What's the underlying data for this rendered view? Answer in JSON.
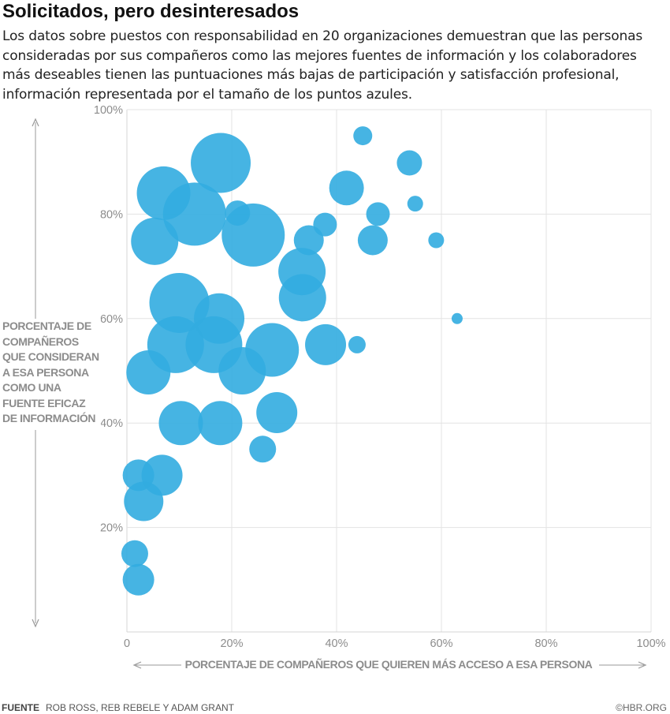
{
  "title": "Solicitados, pero desinteresados",
  "subtitle": "Los datos sobre puestos con responsabilidad en 20 organizaciones demuestran que las personas consideradas por sus compañeros como las mejores fuentes de información y los colaboradores más deseables tienen las puntuaciones más bajas de participación y satisfacción profesional, información representada por el tamaño de los puntos azules.",
  "footer": {
    "source_label": "FUENTE",
    "source_text": "ROB ROSS, REB REBELE Y ADAM GRANT",
    "credit": "©HBR.ORG"
  },
  "colors": {
    "bubble": "#32ace0",
    "grid": "#e3e3e3",
    "axis_text": "#8c8c8c",
    "arrow": "#999999"
  },
  "chart_data": {
    "type": "scatter",
    "title": "Solicitados, pero desinteresados",
    "xlabel": "PORCENTAJE DE COMPAÑEROS QUE QUIEREN MÁS ACCESO A ESA PERSONA",
    "ylabel": "PORCENTAJE DE COMPAÑEROS QUE CONSIDERAN A ESA PERSONA COMO UNA FUENTE EFICAZ DE INFORMACIÓN",
    "xlim": [
      0,
      100
    ],
    "ylim": [
      0,
      100
    ],
    "x_ticks": [
      "0",
      "20%",
      "40%",
      "60%",
      "80%",
      "100%"
    ],
    "y_ticks": [
      "20%",
      "40%",
      "60%",
      "80%",
      "100%"
    ],
    "grid": true,
    "size_note": "bubble size = participation and professional satisfaction score (relative)",
    "points": [
      {
        "x": 17.9,
        "y": 89.8,
        "size": 38
      },
      {
        "x": 7.0,
        "y": 84.0,
        "size": 34
      },
      {
        "x": 12.9,
        "y": 80.0,
        "size": 40
      },
      {
        "x": 21.1,
        "y": 80.2,
        "size": 16
      },
      {
        "x": 24.1,
        "y": 76.0,
        "size": 40
      },
      {
        "x": 5.3,
        "y": 74.8,
        "size": 30
      },
      {
        "x": 10.0,
        "y": 63.0,
        "size": 38
      },
      {
        "x": 17.6,
        "y": 60.0,
        "size": 32
      },
      {
        "x": 9.3,
        "y": 55.0,
        "size": 36
      },
      {
        "x": 16.6,
        "y": 55.0,
        "size": 36
      },
      {
        "x": 4.1,
        "y": 49.7,
        "size": 28
      },
      {
        "x": 22.0,
        "y": 50.0,
        "size": 30
      },
      {
        "x": 27.7,
        "y": 54.0,
        "size": 34
      },
      {
        "x": 37.9,
        "y": 55.0,
        "size": 26
      },
      {
        "x": 33.4,
        "y": 69.0,
        "size": 30
      },
      {
        "x": 33.5,
        "y": 64.0,
        "size": 30
      },
      {
        "x": 34.7,
        "y": 75.0,
        "size": 19
      },
      {
        "x": 37.8,
        "y": 78.0,
        "size": 15
      },
      {
        "x": 41.9,
        "y": 85.0,
        "size": 22
      },
      {
        "x": 45.0,
        "y": 95.0,
        "size": 12
      },
      {
        "x": 53.9,
        "y": 89.8,
        "size": 16
      },
      {
        "x": 47.9,
        "y": 80.0,
        "size": 15
      },
      {
        "x": 46.9,
        "y": 75.0,
        "size": 19
      },
      {
        "x": 55.0,
        "y": 82.0,
        "size": 10
      },
      {
        "x": 59.0,
        "y": 75.0,
        "size": 10
      },
      {
        "x": 63.0,
        "y": 60.0,
        "size": 7
      },
      {
        "x": 43.9,
        "y": 55.0,
        "size": 11
      },
      {
        "x": 28.6,
        "y": 42.0,
        "size": 26
      },
      {
        "x": 25.9,
        "y": 35.0,
        "size": 17
      },
      {
        "x": 17.8,
        "y": 40.0,
        "size": 28
      },
      {
        "x": 10.3,
        "y": 40.0,
        "size": 28
      },
      {
        "x": 2.2,
        "y": 30.0,
        "size": 20
      },
      {
        "x": 6.7,
        "y": 30.0,
        "size": 26
      },
      {
        "x": 3.2,
        "y": 25.0,
        "size": 25
      },
      {
        "x": 1.5,
        "y": 15.0,
        "size": 17
      },
      {
        "x": 2.2,
        "y": 10.0,
        "size": 20
      }
    ]
  }
}
